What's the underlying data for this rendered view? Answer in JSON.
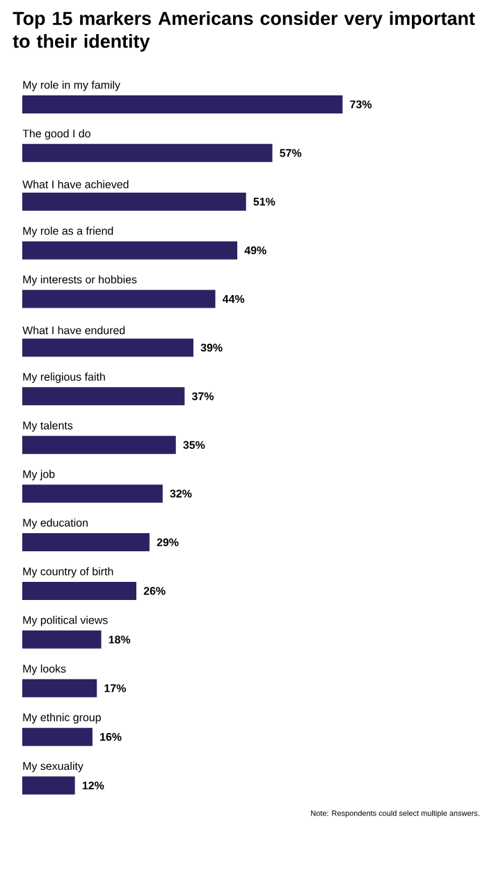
{
  "chart_data": {
    "type": "bar",
    "orientation": "horizontal",
    "title": "Top 15 markers Americans consider very important to their identity",
    "categories": [
      "My role in my family",
      "The good I do",
      "What I have achieved",
      "My role as a friend",
      "My interests or hobbies",
      "What I have endured",
      "My religious faith",
      "My talents",
      "My job",
      "My education",
      "My country of birth",
      "My political views",
      "My looks",
      "My ethnic group",
      "My sexuality"
    ],
    "values": [
      73,
      57,
      51,
      49,
      44,
      39,
      37,
      35,
      32,
      29,
      26,
      18,
      17,
      16,
      12
    ],
    "value_labels": [
      "73%",
      "57%",
      "51%",
      "49%",
      "44%",
      "39%",
      "37%",
      "35%",
      "32%",
      "29%",
      "26%",
      "18%",
      "17%",
      "16%",
      "12%"
    ],
    "color": "#2e2163",
    "annotations": [
      "Note: Respondents could select multiple answers."
    ]
  }
}
